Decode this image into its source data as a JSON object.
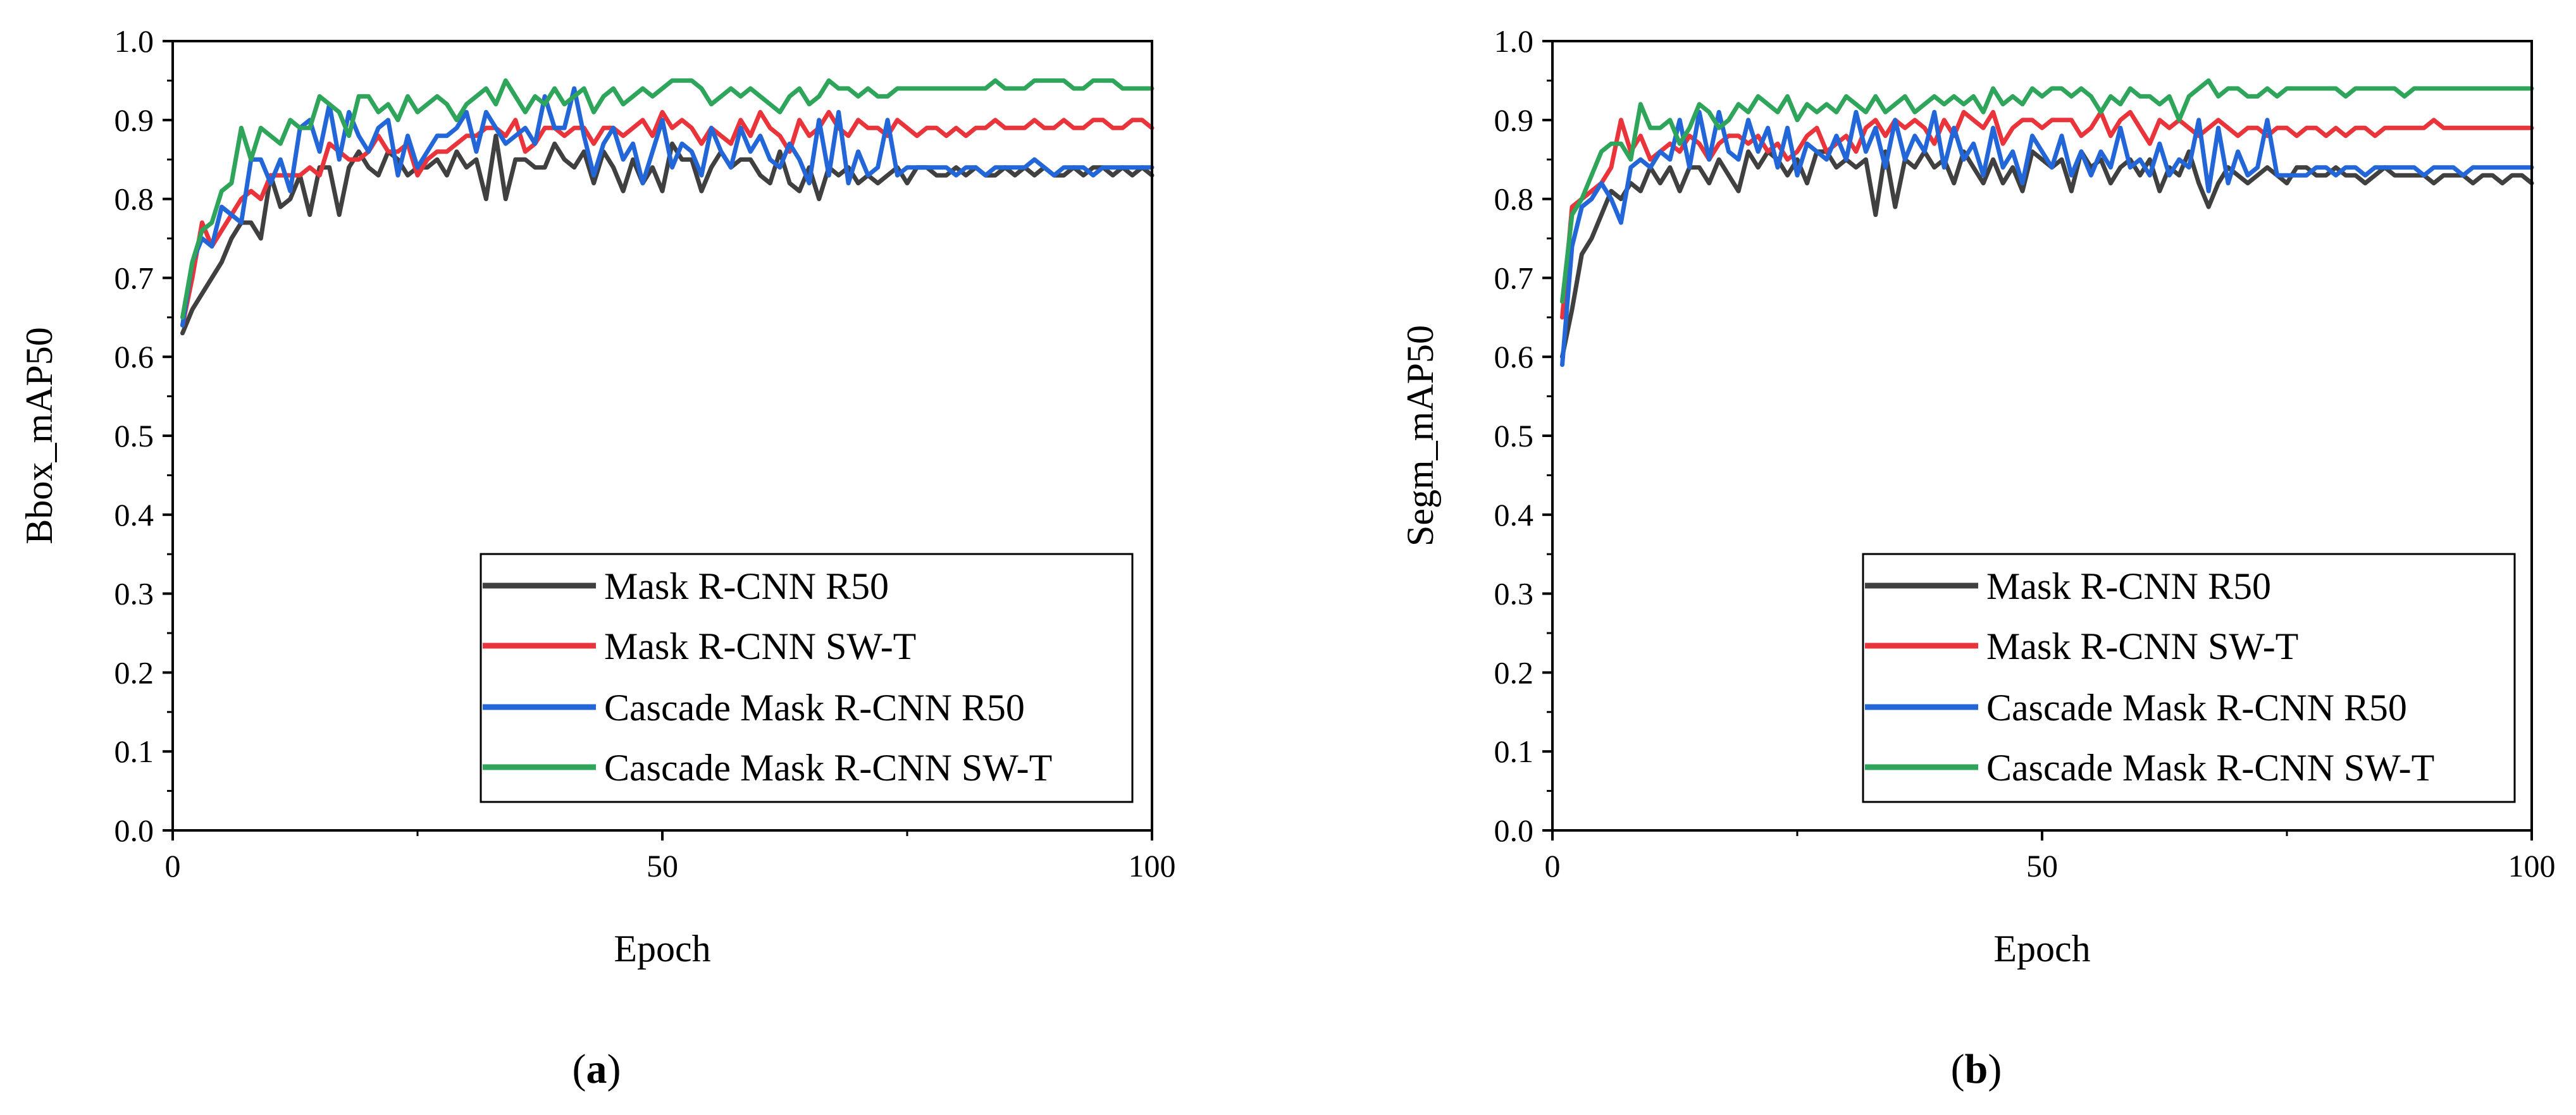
{
  "chart_data": [
    {
      "type": "line",
      "panel_label": "a",
      "xlabel": "Epoch",
      "ylabel": "Bbox_mAP50",
      "xlim": [
        0,
        100
      ],
      "ylim": [
        0.0,
        1.0
      ],
      "xticks": [
        0,
        50,
        100
      ],
      "yticks": [
        0.0,
        0.1,
        0.2,
        0.3,
        0.4,
        0.5,
        0.6,
        0.7,
        0.8,
        0.9,
        1.0
      ],
      "grid": false,
      "legend_position": "bottom-right",
      "x": [
        1,
        2,
        3,
        4,
        5,
        6,
        7,
        8,
        9,
        10,
        11,
        12,
        13,
        14,
        15,
        16,
        17,
        18,
        19,
        20,
        21,
        22,
        23,
        24,
        25,
        26,
        27,
        28,
        29,
        30,
        31,
        32,
        33,
        34,
        35,
        36,
        37,
        38,
        39,
        40,
        41,
        42,
        43,
        44,
        45,
        46,
        47,
        48,
        49,
        50,
        51,
        52,
        53,
        54,
        55,
        56,
        57,
        58,
        59,
        60,
        61,
        62,
        63,
        64,
        65,
        66,
        67,
        68,
        69,
        70,
        71,
        72,
        73,
        74,
        75,
        76,
        77,
        78,
        79,
        80,
        81,
        82,
        83,
        84,
        85,
        86,
        87,
        88,
        89,
        90,
        91,
        92,
        93,
        94,
        95,
        96,
        97,
        98,
        99,
        100
      ],
      "series": [
        {
          "name": "Mask R-CNN R50",
          "color": "#404040",
          "values": [
            0.63,
            0.66,
            0.68,
            0.7,
            0.72,
            0.75,
            0.77,
            0.77,
            0.75,
            0.83,
            0.79,
            0.8,
            0.83,
            0.78,
            0.84,
            0.84,
            0.78,
            0.84,
            0.86,
            0.84,
            0.83,
            0.86,
            0.85,
            0.83,
            0.84,
            0.84,
            0.85,
            0.83,
            0.86,
            0.84,
            0.85,
            0.8,
            0.88,
            0.8,
            0.85,
            0.85,
            0.84,
            0.84,
            0.87,
            0.85,
            0.84,
            0.86,
            0.82,
            0.86,
            0.84,
            0.81,
            0.85,
            0.82,
            0.84,
            0.81,
            0.87,
            0.85,
            0.85,
            0.81,
            0.84,
            0.86,
            0.84,
            0.85,
            0.85,
            0.83,
            0.82,
            0.86,
            0.82,
            0.81,
            0.84,
            0.8,
            0.84,
            0.83,
            0.84,
            0.82,
            0.83,
            0.82,
            0.83,
            0.84,
            0.82,
            0.84,
            0.84,
            0.83,
            0.83,
            0.84,
            0.83,
            0.84,
            0.83,
            0.83,
            0.84,
            0.83,
            0.84,
            0.83,
            0.84,
            0.83,
            0.83,
            0.84,
            0.83,
            0.84,
            0.84,
            0.83,
            0.84,
            0.83,
            0.84,
            0.83
          ]
        },
        {
          "name": "Mask R-CNN SW-T",
          "color": "#e8343a",
          "values": [
            0.64,
            0.7,
            0.77,
            0.74,
            0.76,
            0.78,
            0.8,
            0.81,
            0.8,
            0.83,
            0.83,
            0.83,
            0.83,
            0.84,
            0.83,
            0.87,
            0.86,
            0.85,
            0.85,
            0.86,
            0.88,
            0.86,
            0.86,
            0.87,
            0.83,
            0.85,
            0.86,
            0.86,
            0.87,
            0.88,
            0.88,
            0.89,
            0.89,
            0.88,
            0.9,
            0.86,
            0.87,
            0.89,
            0.89,
            0.88,
            0.89,
            0.89,
            0.87,
            0.89,
            0.89,
            0.88,
            0.89,
            0.9,
            0.88,
            0.91,
            0.89,
            0.9,
            0.89,
            0.87,
            0.89,
            0.88,
            0.87,
            0.9,
            0.88,
            0.91,
            0.89,
            0.88,
            0.86,
            0.9,
            0.88,
            0.89,
            0.91,
            0.89,
            0.88,
            0.9,
            0.89,
            0.89,
            0.88,
            0.9,
            0.89,
            0.88,
            0.89,
            0.89,
            0.88,
            0.89,
            0.88,
            0.89,
            0.89,
            0.9,
            0.89,
            0.89,
            0.89,
            0.9,
            0.89,
            0.89,
            0.9,
            0.89,
            0.89,
            0.9,
            0.9,
            0.89,
            0.89,
            0.9,
            0.9,
            0.89
          ]
        },
        {
          "name": "Cascade Mask R-CNN R50",
          "color": "#2266d8",
          "values": [
            0.64,
            0.72,
            0.75,
            0.74,
            0.79,
            0.78,
            0.77,
            0.85,
            0.85,
            0.82,
            0.85,
            0.81,
            0.89,
            0.9,
            0.86,
            0.92,
            0.85,
            0.91,
            0.88,
            0.86,
            0.89,
            0.9,
            0.83,
            0.88,
            0.84,
            0.86,
            0.88,
            0.88,
            0.89,
            0.91,
            0.86,
            0.91,
            0.89,
            0.87,
            0.88,
            0.89,
            0.87,
            0.93,
            0.89,
            0.89,
            0.94,
            0.88,
            0.83,
            0.87,
            0.89,
            0.85,
            0.87,
            0.82,
            0.86,
            0.9,
            0.84,
            0.87,
            0.86,
            0.83,
            0.89,
            0.86,
            0.84,
            0.89,
            0.86,
            0.88,
            0.85,
            0.84,
            0.87,
            0.85,
            0.82,
            0.9,
            0.83,
            0.91,
            0.82,
            0.86,
            0.83,
            0.84,
            0.9,
            0.83,
            0.84,
            0.84,
            0.84,
            0.84,
            0.84,
            0.83,
            0.84,
            0.84,
            0.83,
            0.84,
            0.84,
            0.84,
            0.84,
            0.85,
            0.84,
            0.83,
            0.84,
            0.84,
            0.84,
            0.83,
            0.84,
            0.84,
            0.84,
            0.84,
            0.84,
            0.84
          ]
        },
        {
          "name": "Cascade Mask R-CNN SW-T",
          "color": "#2ea55a",
          "values": [
            0.65,
            0.72,
            0.76,
            0.77,
            0.81,
            0.82,
            0.89,
            0.85,
            0.89,
            0.88,
            0.87,
            0.9,
            0.89,
            0.89,
            0.93,
            0.92,
            0.91,
            0.88,
            0.93,
            0.93,
            0.91,
            0.92,
            0.9,
            0.93,
            0.91,
            0.92,
            0.93,
            0.92,
            0.9,
            0.92,
            0.93,
            0.94,
            0.92,
            0.95,
            0.93,
            0.91,
            0.93,
            0.92,
            0.94,
            0.92,
            0.93,
            0.94,
            0.91,
            0.93,
            0.94,
            0.92,
            0.93,
            0.94,
            0.93,
            0.94,
            0.95,
            0.95,
            0.95,
            0.94,
            0.92,
            0.93,
            0.94,
            0.93,
            0.94,
            0.93,
            0.92,
            0.91,
            0.93,
            0.94,
            0.92,
            0.93,
            0.95,
            0.94,
            0.94,
            0.93,
            0.94,
            0.93,
            0.93,
            0.94,
            0.94,
            0.94,
            0.94,
            0.94,
            0.94,
            0.94,
            0.94,
            0.94,
            0.94,
            0.95,
            0.94,
            0.94,
            0.94,
            0.95,
            0.95,
            0.95,
            0.95,
            0.94,
            0.94,
            0.95,
            0.95,
            0.95,
            0.94,
            0.94,
            0.94,
            0.94
          ]
        }
      ]
    },
    {
      "type": "line",
      "panel_label": "b",
      "xlabel": "Epoch",
      "ylabel": "Segm_mAP50",
      "xlim": [
        0,
        100
      ],
      "ylim": [
        0.0,
        1.0
      ],
      "xticks": [
        0,
        50,
        100
      ],
      "yticks": [
        0.0,
        0.1,
        0.2,
        0.3,
        0.4,
        0.5,
        0.6,
        0.7,
        0.8,
        0.9,
        1.0
      ],
      "grid": false,
      "legend_position": "bottom-right",
      "x": [
        1,
        2,
        3,
        4,
        5,
        6,
        7,
        8,
        9,
        10,
        11,
        12,
        13,
        14,
        15,
        16,
        17,
        18,
        19,
        20,
        21,
        22,
        23,
        24,
        25,
        26,
        27,
        28,
        29,
        30,
        31,
        32,
        33,
        34,
        35,
        36,
        37,
        38,
        39,
        40,
        41,
        42,
        43,
        44,
        45,
        46,
        47,
        48,
        49,
        50,
        51,
        52,
        53,
        54,
        55,
        56,
        57,
        58,
        59,
        60,
        61,
        62,
        63,
        64,
        65,
        66,
        67,
        68,
        69,
        70,
        71,
        72,
        73,
        74,
        75,
        76,
        77,
        78,
        79,
        80,
        81,
        82,
        83,
        84,
        85,
        86,
        87,
        88,
        89,
        90,
        91,
        92,
        93,
        94,
        95,
        96,
        97,
        98,
        99,
        100
      ],
      "series": [
        {
          "name": "Mask R-CNN R50",
          "color": "#404040",
          "values": [
            0.6,
            0.66,
            0.73,
            0.75,
            0.78,
            0.81,
            0.8,
            0.82,
            0.81,
            0.84,
            0.82,
            0.84,
            0.81,
            0.84,
            0.84,
            0.82,
            0.85,
            0.83,
            0.81,
            0.86,
            0.84,
            0.86,
            0.85,
            0.83,
            0.85,
            0.82,
            0.86,
            0.86,
            0.84,
            0.85,
            0.84,
            0.85,
            0.78,
            0.86,
            0.79,
            0.85,
            0.84,
            0.86,
            0.84,
            0.85,
            0.82,
            0.86,
            0.84,
            0.82,
            0.85,
            0.82,
            0.84,
            0.81,
            0.86,
            0.85,
            0.84,
            0.85,
            0.81,
            0.86,
            0.84,
            0.85,
            0.82,
            0.84,
            0.85,
            0.83,
            0.85,
            0.81,
            0.84,
            0.83,
            0.86,
            0.82,
            0.79,
            0.82,
            0.84,
            0.83,
            0.82,
            0.83,
            0.84,
            0.83,
            0.82,
            0.84,
            0.84,
            0.83,
            0.83,
            0.84,
            0.83,
            0.83,
            0.82,
            0.83,
            0.84,
            0.83,
            0.83,
            0.83,
            0.83,
            0.82,
            0.83,
            0.83,
            0.83,
            0.82,
            0.83,
            0.83,
            0.82,
            0.83,
            0.83,
            0.82
          ]
        },
        {
          "name": "Mask R-CNN SW-T",
          "color": "#e8343a",
          "values": [
            0.65,
            0.79,
            0.8,
            0.81,
            0.82,
            0.84,
            0.9,
            0.86,
            0.88,
            0.85,
            0.86,
            0.87,
            0.86,
            0.88,
            0.87,
            0.85,
            0.87,
            0.88,
            0.88,
            0.87,
            0.88,
            0.86,
            0.87,
            0.85,
            0.86,
            0.88,
            0.89,
            0.86,
            0.87,
            0.88,
            0.86,
            0.89,
            0.9,
            0.88,
            0.9,
            0.89,
            0.9,
            0.89,
            0.87,
            0.9,
            0.88,
            0.91,
            0.9,
            0.89,
            0.91,
            0.87,
            0.89,
            0.9,
            0.9,
            0.89,
            0.9,
            0.9,
            0.9,
            0.88,
            0.89,
            0.91,
            0.88,
            0.9,
            0.91,
            0.89,
            0.87,
            0.9,
            0.89,
            0.9,
            0.89,
            0.88,
            0.89,
            0.9,
            0.89,
            0.88,
            0.89,
            0.89,
            0.88,
            0.89,
            0.89,
            0.88,
            0.89,
            0.89,
            0.88,
            0.89,
            0.88,
            0.89,
            0.89,
            0.88,
            0.89,
            0.89,
            0.89,
            0.89,
            0.89,
            0.9,
            0.89,
            0.89,
            0.89,
            0.89,
            0.89,
            0.89,
            0.89,
            0.89,
            0.89,
            0.89
          ]
        },
        {
          "name": "Cascade Mask R-CNN R50",
          "color": "#2266d8",
          "values": [
            0.59,
            0.74,
            0.79,
            0.8,
            0.82,
            0.8,
            0.77,
            0.84,
            0.85,
            0.84,
            0.86,
            0.85,
            0.9,
            0.84,
            0.91,
            0.85,
            0.91,
            0.86,
            0.85,
            0.9,
            0.86,
            0.89,
            0.84,
            0.89,
            0.83,
            0.87,
            0.86,
            0.85,
            0.88,
            0.85,
            0.91,
            0.86,
            0.89,
            0.84,
            0.9,
            0.85,
            0.88,
            0.86,
            0.91,
            0.84,
            0.89,
            0.85,
            0.87,
            0.83,
            0.89,
            0.84,
            0.86,
            0.82,
            0.88,
            0.86,
            0.84,
            0.88,
            0.83,
            0.86,
            0.83,
            0.86,
            0.84,
            0.89,
            0.84,
            0.85,
            0.83,
            0.87,
            0.83,
            0.85,
            0.84,
            0.9,
            0.81,
            0.89,
            0.82,
            0.86,
            0.83,
            0.84,
            0.9,
            0.83,
            0.83,
            0.83,
            0.83,
            0.84,
            0.84,
            0.83,
            0.84,
            0.84,
            0.83,
            0.84,
            0.84,
            0.84,
            0.84,
            0.84,
            0.83,
            0.84,
            0.84,
            0.84,
            0.83,
            0.84,
            0.84,
            0.84,
            0.84,
            0.84,
            0.84,
            0.84
          ]
        },
        {
          "name": "Cascade Mask R-CNN SW-T",
          "color": "#2ea55a",
          "values": [
            0.67,
            0.78,
            0.8,
            0.83,
            0.86,
            0.87,
            0.87,
            0.85,
            0.92,
            0.89,
            0.89,
            0.9,
            0.87,
            0.89,
            0.92,
            0.91,
            0.89,
            0.9,
            0.92,
            0.91,
            0.93,
            0.92,
            0.91,
            0.93,
            0.9,
            0.92,
            0.91,
            0.92,
            0.91,
            0.93,
            0.92,
            0.91,
            0.93,
            0.91,
            0.92,
            0.93,
            0.91,
            0.92,
            0.93,
            0.92,
            0.93,
            0.92,
            0.93,
            0.91,
            0.94,
            0.92,
            0.93,
            0.92,
            0.94,
            0.93,
            0.94,
            0.94,
            0.93,
            0.94,
            0.93,
            0.91,
            0.93,
            0.92,
            0.94,
            0.93,
            0.93,
            0.92,
            0.93,
            0.9,
            0.93,
            0.94,
            0.95,
            0.93,
            0.94,
            0.94,
            0.93,
            0.93,
            0.94,
            0.93,
            0.94,
            0.94,
            0.94,
            0.94,
            0.94,
            0.94,
            0.93,
            0.94,
            0.94,
            0.94,
            0.94,
            0.94,
            0.93,
            0.94,
            0.94,
            0.94,
            0.94,
            0.94,
            0.94,
            0.94,
            0.94,
            0.94,
            0.94,
            0.94,
            0.94,
            0.94
          ]
        }
      ]
    }
  ]
}
